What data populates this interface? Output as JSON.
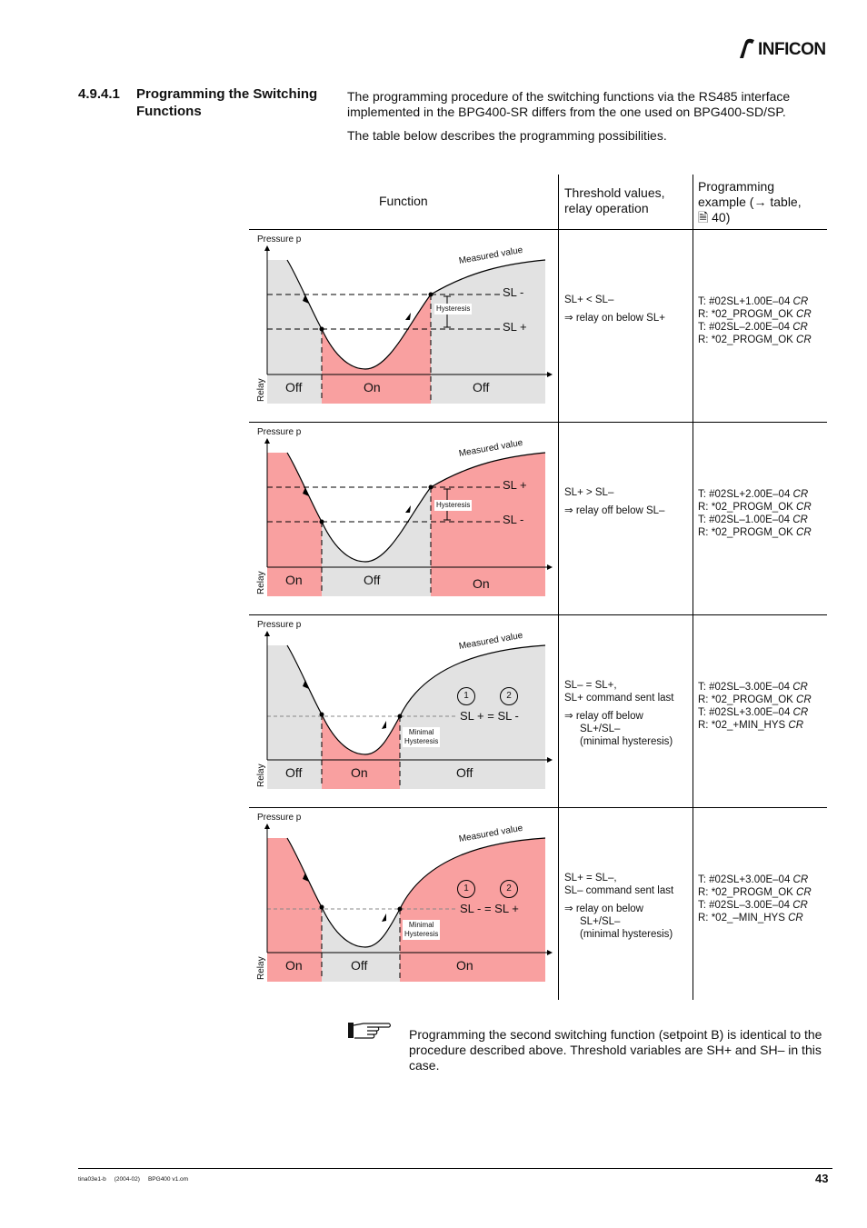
{
  "header": {
    "brand": "INFICON",
    "logo_icon": "inficon-logo-icon"
  },
  "section": {
    "number": "4.9.4.1",
    "title": "Programming the Switching Functions"
  },
  "intro": {
    "p1": "The programming procedure of the switching functions via the RS485 interface implemented in the BPG400-SR differs from the one used on BPG400-SD/SP.",
    "p2": "The table below describes the programming possibilities."
  },
  "table": {
    "headers": {
      "function": "Function",
      "threshold": "Threshold values, relay operation",
      "programming": "Programming example (→ table, 🗎 40)"
    },
    "rows": [
      {
        "chart": {
          "pressure_label": "Pressure p",
          "measured": "Measured value",
          "relay": "Relay",
          "upper": "SL -",
          "lower": "SL +",
          "hyst": "Hysteresis",
          "states": [
            "Off",
            "On",
            "Off"
          ]
        },
        "threshold": [
          "SL+ < SL–",
          "⇒ relay on below SL+"
        ],
        "program": [
          [
            "T: #02SL+1.00E–04 ",
            "CR"
          ],
          [
            "R: *02_PROGM_OK ",
            "CR"
          ],
          [
            "T: #02SL–2.00E–04 ",
            "CR"
          ],
          [
            "R: *02_PROGM_OK ",
            "CR"
          ]
        ]
      },
      {
        "chart": {
          "pressure_label": "Pressure p",
          "measured": "Measured value",
          "relay": "Relay",
          "upper": "SL +",
          "lower": "SL -",
          "hyst": "Hysteresis",
          "states": [
            "On",
            "Off",
            "On"
          ]
        },
        "threshold": [
          "SL+ > SL–",
          "⇒ relay off below SL–"
        ],
        "program": [
          [
            "T: #02SL+2.00E–04 ",
            "CR"
          ],
          [
            "R: *02_PROGM_OK ",
            "CR"
          ],
          [
            "T: #02SL–1.00E–04 ",
            "CR"
          ],
          [
            "R: *02_PROGM_OK ",
            "CR"
          ]
        ]
      },
      {
        "chart": {
          "pressure_label": "Pressure p",
          "measured": "Measured value",
          "relay": "Relay",
          "eq": "SL + = SL -",
          "hyst1": "Minimal",
          "hyst2": "Hysteresis",
          "c1": "1",
          "c2": "2",
          "states": [
            "Off",
            "On",
            "Off"
          ]
        },
        "threshold": [
          "SL– = SL+,",
          "SL+ command sent last",
          "⇒ relay off below",
          "SL+/SL–",
          "(minimal hysteresis)"
        ],
        "program": [
          [
            "T: #02SL–3.00E–04 ",
            "CR"
          ],
          [
            "R: *02_PROGM_OK ",
            "CR"
          ],
          [
            "T: #02SL+3.00E–04 ",
            "CR"
          ],
          [
            "R: *02_+MIN_HYS ",
            "CR"
          ]
        ]
      },
      {
        "chart": {
          "pressure_label": "Pressure p",
          "measured": "Measured value",
          "relay": "Relay",
          "eq": "SL - = SL +",
          "hyst1": "Minimal",
          "hyst2": "Hysteresis",
          "c1": "1",
          "c2": "2",
          "states": [
            "On",
            "Off",
            "On"
          ]
        },
        "threshold": [
          "SL+ = SL–,",
          "SL– command sent last",
          "⇒ relay on below",
          "SL+/SL–",
          "(minimal hysteresis)"
        ],
        "program": [
          [
            "T: #02SL+3.00E–04 ",
            "CR"
          ],
          [
            "R: *02_PROGM_OK ",
            "CR"
          ],
          [
            "T: #02SL–3.00E–04 ",
            "CR"
          ],
          [
            "R: *02_–MIN_HYS ",
            "CR"
          ]
        ]
      }
    ]
  },
  "note": {
    "icon": "pointing-hand-icon",
    "text": "Programming the second switching function (setpoint B) is identical to the procedure described above. Threshold variables are SH+ and SH– in this case."
  },
  "footer": {
    "doc": "tina03e1-b     (2004-02)     BPG400 v1.om",
    "page": "43"
  },
  "colors": {
    "on": "#f9a0a0",
    "off": "#e2e2e2",
    "line": "#000000"
  }
}
